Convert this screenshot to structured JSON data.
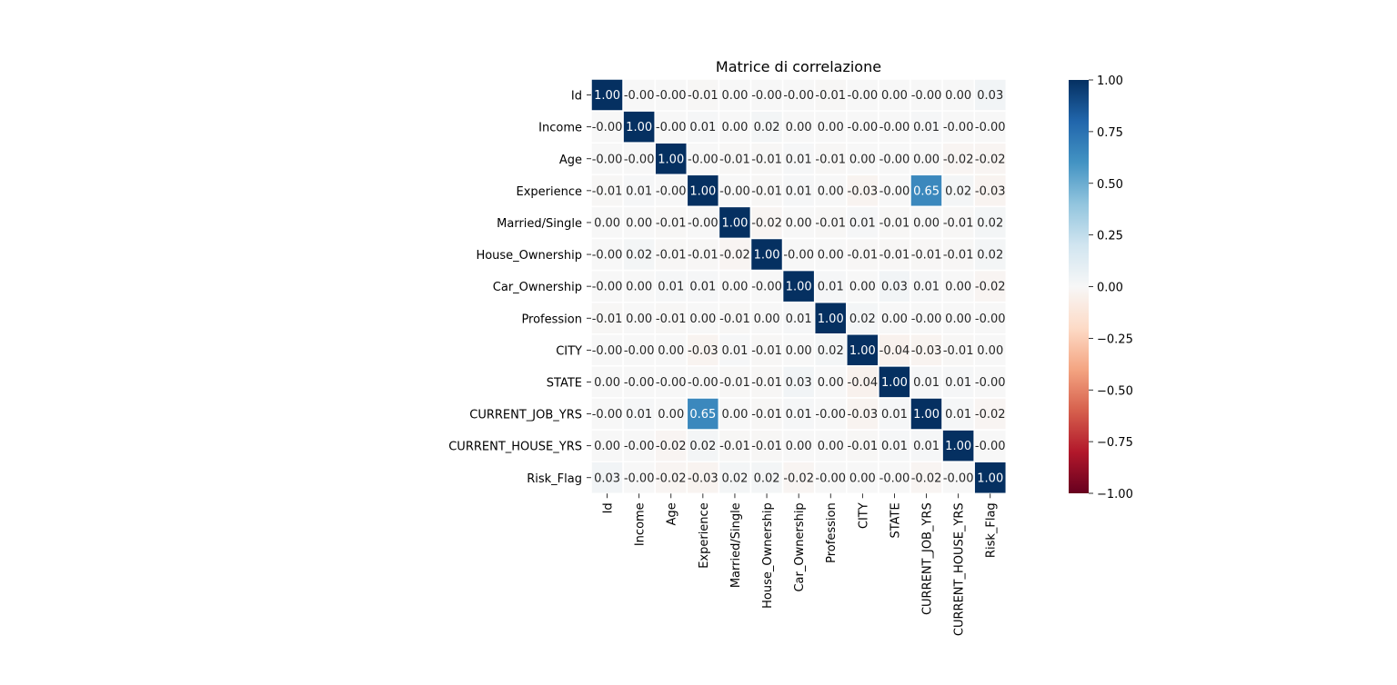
{
  "chart_data": {
    "type": "heatmap",
    "title": "Matrice di correlazione",
    "xlabel": "",
    "ylabel": "",
    "labels": [
      "Id",
      "Income",
      "Age",
      "Experience",
      "Married/Single",
      "House_Ownership",
      "Car_Ownership",
      "Profession",
      "CITY",
      "STATE",
      "CURRENT_JOB_YRS",
      "CURRENT_HOUSE_YRS",
      "Risk_Flag"
    ],
    "matrix": [
      [
        1.0,
        -0.0,
        -0.0,
        -0.01,
        0.0,
        -0.0,
        -0.0,
        -0.01,
        -0.0,
        0.0,
        -0.0,
        0.0,
        0.03
      ],
      [
        -0.0,
        1.0,
        -0.0,
        0.01,
        0.0,
        0.02,
        0.0,
        0.0,
        -0.0,
        -0.0,
        0.01,
        -0.0,
        -0.0
      ],
      [
        -0.0,
        -0.0,
        1.0,
        -0.0,
        -0.01,
        -0.01,
        0.01,
        -0.01,
        0.0,
        -0.0,
        0.0,
        -0.02,
        -0.02
      ],
      [
        -0.01,
        0.01,
        -0.0,
        1.0,
        -0.0,
        -0.01,
        0.01,
        0.0,
        -0.03,
        -0.0,
        0.65,
        0.02,
        -0.03
      ],
      [
        0.0,
        0.0,
        -0.01,
        -0.0,
        1.0,
        -0.02,
        0.0,
        -0.01,
        0.01,
        -0.01,
        0.0,
        -0.01,
        0.02
      ],
      [
        -0.0,
        0.02,
        -0.01,
        -0.01,
        -0.02,
        1.0,
        -0.0,
        0.0,
        -0.01,
        -0.01,
        -0.01,
        -0.01,
        0.02
      ],
      [
        -0.0,
        0.0,
        0.01,
        0.01,
        0.0,
        -0.0,
        1.0,
        0.01,
        0.0,
        0.03,
        0.01,
        0.0,
        -0.02
      ],
      [
        -0.01,
        0.0,
        -0.01,
        0.0,
        -0.01,
        0.0,
        0.01,
        1.0,
        0.02,
        0.0,
        -0.0,
        0.0,
        -0.0
      ],
      [
        -0.0,
        -0.0,
        0.0,
        -0.03,
        0.01,
        -0.01,
        0.0,
        0.02,
        1.0,
        -0.04,
        -0.03,
        -0.01,
        0.0
      ],
      [
        0.0,
        -0.0,
        -0.0,
        -0.0,
        -0.01,
        -0.01,
        0.03,
        0.0,
        -0.04,
        1.0,
        0.01,
        0.01,
        -0.0
      ],
      [
        -0.0,
        0.01,
        0.0,
        0.65,
        0.0,
        -0.01,
        0.01,
        -0.0,
        -0.03,
        0.01,
        1.0,
        0.01,
        -0.02
      ],
      [
        0.0,
        -0.0,
        -0.02,
        0.02,
        -0.01,
        -0.01,
        0.0,
        0.0,
        -0.01,
        0.01,
        0.01,
        1.0,
        -0.0
      ],
      [
        0.03,
        -0.0,
        -0.02,
        -0.03,
        0.02,
        0.02,
        -0.02,
        -0.0,
        0.0,
        -0.0,
        -0.02,
        -0.0,
        1.0
      ]
    ],
    "cell_labels": [
      [
        "1.00",
        "-0.00",
        "-0.00",
        "-0.01",
        "0.00",
        "-0.00",
        "-0.00",
        "-0.01",
        "-0.00",
        "0.00",
        "-0.00",
        "0.00",
        "0.03"
      ],
      [
        "-0.00",
        "1.00",
        "-0.00",
        "0.01",
        "0.00",
        "0.02",
        "0.00",
        "0.00",
        "-0.00",
        "-0.00",
        "0.01",
        "-0.00",
        "-0.00"
      ],
      [
        "-0.00",
        "-0.00",
        "1.00",
        "-0.00",
        "-0.01",
        "-0.01",
        "0.01",
        "-0.01",
        "0.00",
        "-0.00",
        "0.00",
        "-0.02",
        "-0.02"
      ],
      [
        "-0.01",
        "0.01",
        "-0.00",
        "1.00",
        "-0.00",
        "-0.01",
        "0.01",
        "0.00",
        "-0.03",
        "-0.00",
        "0.65",
        "0.02",
        "-0.03"
      ],
      [
        "0.00",
        "0.00",
        "-0.01",
        "-0.00",
        "1.00",
        "-0.02",
        "0.00",
        "-0.01",
        "0.01",
        "-0.01",
        "0.00",
        "-0.01",
        "0.02"
      ],
      [
        "-0.00",
        "0.02",
        "-0.01",
        "-0.01",
        "-0.02",
        "1.00",
        "-0.00",
        "0.00",
        "-0.01",
        "-0.01",
        "-0.01",
        "-0.01",
        "0.02"
      ],
      [
        "-0.00",
        "0.00",
        "0.01",
        "0.01",
        "0.00",
        "-0.00",
        "1.00",
        "0.01",
        "0.00",
        "0.03",
        "0.01",
        "0.00",
        "-0.02"
      ],
      [
        "-0.01",
        "0.00",
        "-0.01",
        "0.00",
        "-0.01",
        "0.00",
        "0.01",
        "1.00",
        "0.02",
        "0.00",
        "-0.00",
        "0.00",
        "-0.00"
      ],
      [
        "-0.00",
        "-0.00",
        "0.00",
        "-0.03",
        "0.01",
        "-0.01",
        "0.00",
        "0.02",
        "1.00",
        "-0.04",
        "-0.03",
        "-0.01",
        "0.00"
      ],
      [
        "0.00",
        "-0.00",
        "-0.00",
        "-0.00",
        "-0.01",
        "-0.01",
        "0.03",
        "0.00",
        "-0.04",
        "1.00",
        "0.01",
        "0.01",
        "-0.00"
      ],
      [
        "-0.00",
        "0.01",
        "0.00",
        "0.65",
        "0.00",
        "-0.01",
        "0.01",
        "-0.00",
        "-0.03",
        "0.01",
        "1.00",
        "0.01",
        "-0.02"
      ],
      [
        "0.00",
        "-0.00",
        "-0.02",
        "0.02",
        "-0.01",
        "-0.01",
        "0.00",
        "0.00",
        "-0.01",
        "0.01",
        "0.01",
        "1.00",
        "-0.00"
      ],
      [
        "0.03",
        "-0.00",
        "-0.02",
        "-0.03",
        "0.02",
        "0.02",
        "-0.02",
        "-0.00",
        "0.00",
        "-0.00",
        "-0.02",
        "-0.00",
        "1.00"
      ]
    ],
    "colorbar": {
      "range": [
        -1.0,
        1.0
      ],
      "ticks": [
        1.0,
        0.75,
        0.5,
        0.25,
        0.0,
        -0.25,
        -0.5,
        -0.75,
        -1.0
      ],
      "tick_labels": [
        "1.00",
        "0.75",
        "0.50",
        "0.25",
        "0.00",
        "−0.25",
        "−0.50",
        "−0.75",
        "−1.00"
      ],
      "colormap": "RdBu",
      "stops": [
        "#67001f",
        "#b2182b",
        "#d6604d",
        "#f4a582",
        "#fddbc7",
        "#f7f7f7",
        "#d1e5f0",
        "#92c5de",
        "#4393c3",
        "#2166ac",
        "#053061"
      ]
    },
    "grid": false,
    "cell_border_color": "#ffffff",
    "text_color_dark": "#262626",
    "text_color_light": "#ffffff"
  }
}
